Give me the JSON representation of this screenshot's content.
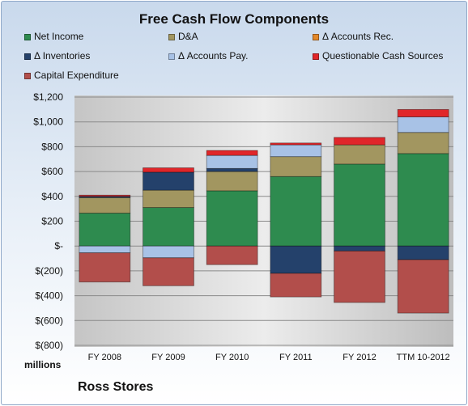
{
  "chart_data": {
    "type": "bar",
    "stacked": true,
    "title": "Free Cash Flow Components",
    "ylabel": "millions",
    "company": "Ross Stores",
    "ylim": [
      -800,
      1200
    ],
    "y_ticks": [
      1200,
      1000,
      800,
      600,
      400,
      200,
      0,
      -200,
      -400,
      -600,
      -800
    ],
    "y_tick_labels": [
      "$1,200",
      "$1,000",
      "$800",
      "$600",
      "$400",
      "$200",
      "$-",
      "$(200)",
      "$(400)",
      "$(600)",
      "$(800)"
    ],
    "categories": [
      "FY 2008",
      "FY 2009",
      "FY 2010",
      "FY 2011",
      "FY 2012",
      "TTM 10-2012"
    ],
    "legend_placement": "top",
    "grid": true,
    "series": [
      {
        "name": "Net Income",
        "color": "#2e8b4f",
        "values": [
          265,
          310,
          445,
          560,
          660,
          745
        ]
      },
      {
        "name": "D&A",
        "color": "#a29660",
        "values": [
          125,
          140,
          155,
          160,
          155,
          170
        ]
      },
      {
        "name": "Δ Accounts Rec.",
        "color": "#e3882a",
        "values": [
          0,
          0,
          0,
          0,
          0,
          0
        ]
      },
      {
        "name": "Δ Inventories",
        "color": "#24416b",
        "values": [
          10,
          145,
          25,
          -220,
          -40,
          -110
        ]
      },
      {
        "name": "Δ Accounts Pay.",
        "color": "#a8c2e6",
        "values": [
          -55,
          -95,
          105,
          95,
          0,
          125
        ]
      },
      {
        "name": "Questionable Cash Sources",
        "color": "#e0262a",
        "values": [
          10,
          35,
          40,
          15,
          60,
          60
        ]
      },
      {
        "name": "Capital Expenditure",
        "color": "#b24e4b",
        "values": [
          -235,
          -225,
          -150,
          -190,
          -415,
          -430
        ]
      }
    ]
  }
}
